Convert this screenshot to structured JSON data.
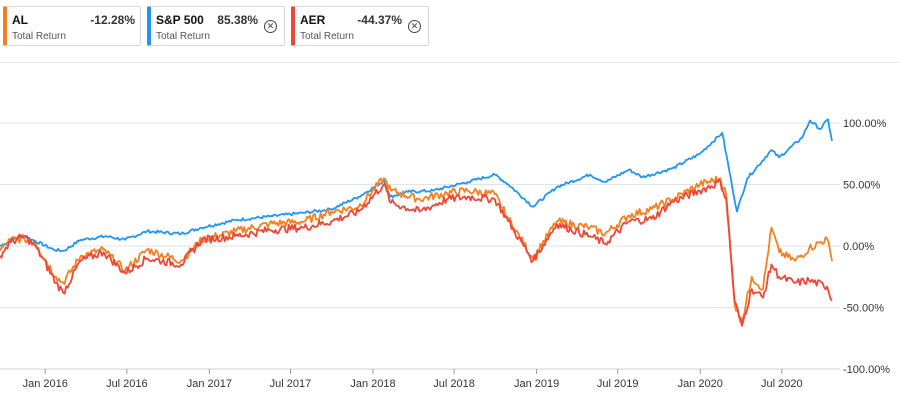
{
  "legend": [
    {
      "ticker": "AL",
      "value": "-12.28%",
      "sub": "Total Return",
      "color": "#f5801f",
      "closable": false
    },
    {
      "ticker": "S&P 500",
      "value": "85.38%",
      "sub": "Total Return",
      "color": "#2196f3",
      "closable": true,
      "close_icon": "close-icon"
    },
    {
      "ticker": "AER",
      "value": "-44.37%",
      "sub": "Total Return",
      "color": "#f0463a",
      "closable": true,
      "close_icon": "close-icon"
    }
  ],
  "chart_data": {
    "type": "line",
    "ylim": [
      -100,
      100
    ],
    "yticks": [
      100,
      50,
      0,
      -50,
      -100
    ],
    "ytick_labels": [
      "100.00%",
      "50.00%",
      "0.00%",
      "-50.00%",
      "-100.00%"
    ],
    "xticks": [
      "2016-01-01",
      "2016-07-01",
      "2017-01-01",
      "2017-07-01",
      "2018-01-01",
      "2018-07-01",
      "2019-01-01",
      "2019-07-01",
      "2020-01-01",
      "2020-07-01"
    ],
    "xtick_labels": [
      "Jan 2016",
      "Jul 2016",
      "Jan 2017",
      "Jul 2017",
      "Jan 2018",
      "Jul 2018",
      "Jan 2019",
      "Jul 2019",
      "Jan 2020",
      "Jul 2020"
    ],
    "xlim": [
      "2015-09-22",
      "2020-10-21"
    ],
    "grid": true,
    "series": [
      {
        "name": "S&P 500",
        "color": "#2196f3",
        "points": [
          [
            "2015-09-22",
            0
          ],
          [
            "2015-10-20",
            5
          ],
          [
            "2015-11-15",
            8
          ],
          [
            "2015-12-10",
            4
          ],
          [
            "2016-01-20",
            -3
          ],
          [
            "2016-02-11",
            -4
          ],
          [
            "2016-03-20",
            5
          ],
          [
            "2016-05-15",
            8
          ],
          [
            "2016-06-27",
            5
          ],
          [
            "2016-08-15",
            12
          ],
          [
            "2016-10-30",
            10
          ],
          [
            "2016-12-15",
            15
          ],
          [
            "2017-02-28",
            21
          ],
          [
            "2017-05-15",
            24
          ],
          [
            "2017-07-31",
            27
          ],
          [
            "2017-09-30",
            30
          ],
          [
            "2017-11-30",
            40
          ],
          [
            "2018-01-26",
            53
          ],
          [
            "2018-02-08",
            40
          ],
          [
            "2018-03-20",
            44
          ],
          [
            "2018-05-15",
            45
          ],
          [
            "2018-07-31",
            52
          ],
          [
            "2018-09-30",
            58
          ],
          [
            "2018-10-30",
            50
          ],
          [
            "2018-12-24",
            32
          ],
          [
            "2019-02-15",
            48
          ],
          [
            "2019-04-30",
            58
          ],
          [
            "2019-06-03",
            52
          ],
          [
            "2019-07-26",
            62
          ],
          [
            "2019-08-25",
            56
          ],
          [
            "2019-10-31",
            63
          ],
          [
            "2019-12-31",
            75
          ],
          [
            "2020-02-19",
            92
          ],
          [
            "2020-03-23",
            28
          ],
          [
            "2020-04-15",
            55
          ],
          [
            "2020-06-08",
            78
          ],
          [
            "2020-06-25",
            72
          ],
          [
            "2020-08-15",
            88
          ],
          [
            "2020-09-02",
            102
          ],
          [
            "2020-09-25",
            95
          ],
          [
            "2020-10-12",
            103
          ],
          [
            "2020-10-21",
            85.38
          ]
        ]
      },
      {
        "name": "AL",
        "color": "#f5801f",
        "points": [
          [
            "2015-09-22",
            -4
          ],
          [
            "2015-10-15",
            5
          ],
          [
            "2015-11-15",
            6
          ],
          [
            "2015-12-10",
            2
          ],
          [
            "2016-01-25",
            -25
          ],
          [
            "2016-02-10",
            -30
          ],
          [
            "2016-03-20",
            -8
          ],
          [
            "2016-05-10",
            -3
          ],
          [
            "2016-06-27",
            -20
          ],
          [
            "2016-08-15",
            -3
          ],
          [
            "2016-10-30",
            -12
          ],
          [
            "2016-12-15",
            5
          ],
          [
            "2017-02-28",
            12
          ],
          [
            "2017-05-15",
            18
          ],
          [
            "2017-07-31",
            20
          ],
          [
            "2017-09-30",
            28
          ],
          [
            "2017-11-30",
            32
          ],
          [
            "2018-01-25",
            55
          ],
          [
            "2018-02-10",
            45
          ],
          [
            "2018-04-15",
            38
          ],
          [
            "2018-06-15",
            43
          ],
          [
            "2018-07-31",
            45
          ],
          [
            "2018-09-30",
            42
          ],
          [
            "2018-10-30",
            22
          ],
          [
            "2018-12-24",
            -10
          ],
          [
            "2019-02-15",
            20
          ],
          [
            "2019-04-30",
            15
          ],
          [
            "2019-06-03",
            10
          ],
          [
            "2019-07-26",
            25
          ],
          [
            "2019-09-15",
            30
          ],
          [
            "2019-10-31",
            38
          ],
          [
            "2019-12-31",
            50
          ],
          [
            "2020-02-15",
            55
          ],
          [
            "2020-02-28",
            42
          ],
          [
            "2020-03-18",
            -48
          ],
          [
            "2020-04-03",
            -62
          ],
          [
            "2020-04-25",
            -25
          ],
          [
            "2020-05-20",
            -35
          ],
          [
            "2020-06-08",
            15
          ],
          [
            "2020-06-25",
            -5
          ],
          [
            "2020-07-31",
            -12
          ],
          [
            "2020-08-31",
            -2
          ],
          [
            "2020-10-10",
            6
          ],
          [
            "2020-10-21",
            -12.28
          ]
        ]
      },
      {
        "name": "AER",
        "color": "#f0463a",
        "points": [
          [
            "2015-09-22",
            -8
          ],
          [
            "2015-10-15",
            3
          ],
          [
            "2015-11-15",
            8
          ],
          [
            "2015-12-10",
            0
          ],
          [
            "2016-01-25",
            -30
          ],
          [
            "2016-02-10",
            -38
          ],
          [
            "2016-03-20",
            -12
          ],
          [
            "2016-05-10",
            -5
          ],
          [
            "2016-06-27",
            -22
          ],
          [
            "2016-08-15",
            -10
          ],
          [
            "2016-10-30",
            -15
          ],
          [
            "2016-12-15",
            5
          ],
          [
            "2017-02-28",
            8
          ],
          [
            "2017-05-15",
            13
          ],
          [
            "2017-07-31",
            15
          ],
          [
            "2017-09-30",
            20
          ],
          [
            "2017-11-30",
            28
          ],
          [
            "2018-01-25",
            50
          ],
          [
            "2018-02-10",
            35
          ],
          [
            "2018-04-15",
            28
          ],
          [
            "2018-06-15",
            38
          ],
          [
            "2018-07-31",
            40
          ],
          [
            "2018-09-30",
            38
          ],
          [
            "2018-10-30",
            20
          ],
          [
            "2018-12-24",
            -12
          ],
          [
            "2019-02-15",
            18
          ],
          [
            "2019-04-30",
            8
          ],
          [
            "2019-06-03",
            2
          ],
          [
            "2019-07-26",
            20
          ],
          [
            "2019-09-15",
            22
          ],
          [
            "2019-10-31",
            36
          ],
          [
            "2019-12-31",
            45
          ],
          [
            "2020-02-15",
            52
          ],
          [
            "2020-02-28",
            38
          ],
          [
            "2020-03-18",
            -45
          ],
          [
            "2020-04-03",
            -65
          ],
          [
            "2020-04-25",
            -35
          ],
          [
            "2020-05-20",
            -42
          ],
          [
            "2020-06-08",
            -15
          ],
          [
            "2020-06-25",
            -25
          ],
          [
            "2020-07-31",
            -30
          ],
          [
            "2020-08-31",
            -28
          ],
          [
            "2020-10-10",
            -33
          ],
          [
            "2020-10-21",
            -44.37
          ]
        ]
      }
    ]
  }
}
